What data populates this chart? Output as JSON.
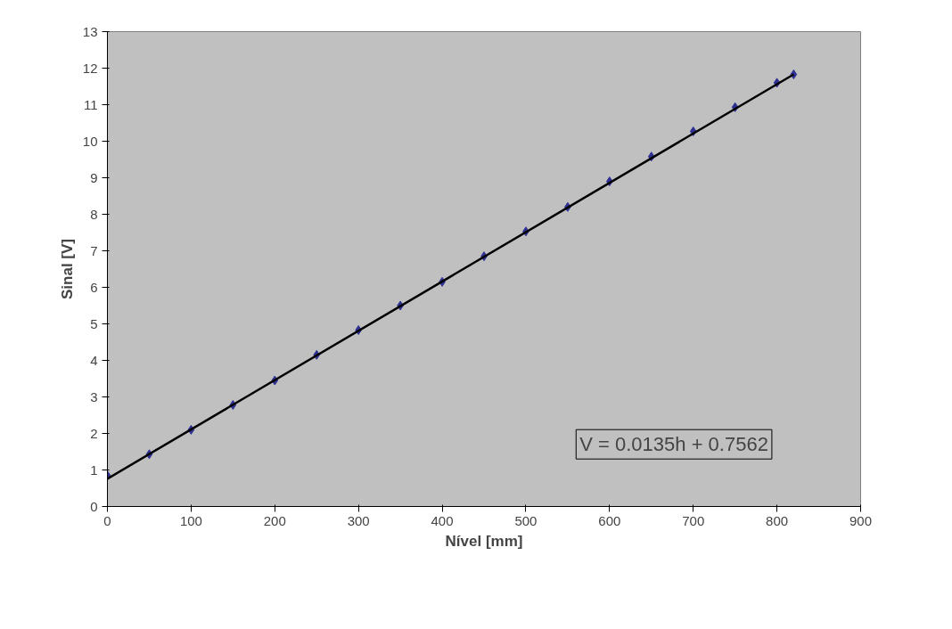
{
  "chart_data": {
    "type": "scatter",
    "xlabel": "Nível [mm]",
    "ylabel": "Sinal [V]",
    "x": [
      0,
      50,
      100,
      150,
      200,
      250,
      300,
      350,
      400,
      450,
      500,
      550,
      600,
      650,
      700,
      750,
      800,
      820
    ],
    "series": [
      {
        "color": "#2e3192",
        "marker": "diamond",
        "values": [
          0.85,
          1.43,
          2.1,
          2.78,
          3.45,
          4.15,
          4.83,
          5.5,
          6.15,
          6.85,
          7.53,
          8.2,
          8.9,
          9.58,
          10.27,
          10.93,
          11.6,
          11.83
        ]
      },
      {
        "type": "line",
        "color": "#000000",
        "line_style": "solid",
        "x": [
          0,
          820
        ],
        "values": [
          0.76,
          11.83
        ]
      }
    ],
    "xlim": [
      0,
      900
    ],
    "xticks": [
      0,
      100,
      200,
      300,
      400,
      500,
      600,
      700,
      800,
      900
    ],
    "ylim": [
      0,
      13
    ],
    "yticks": [
      0,
      1,
      2,
      3,
      4,
      5,
      6,
      7,
      8,
      9,
      10,
      11,
      12,
      13
    ],
    "grid": false,
    "annotations": [
      "V = 0.0135h + 0.7562"
    ]
  }
}
